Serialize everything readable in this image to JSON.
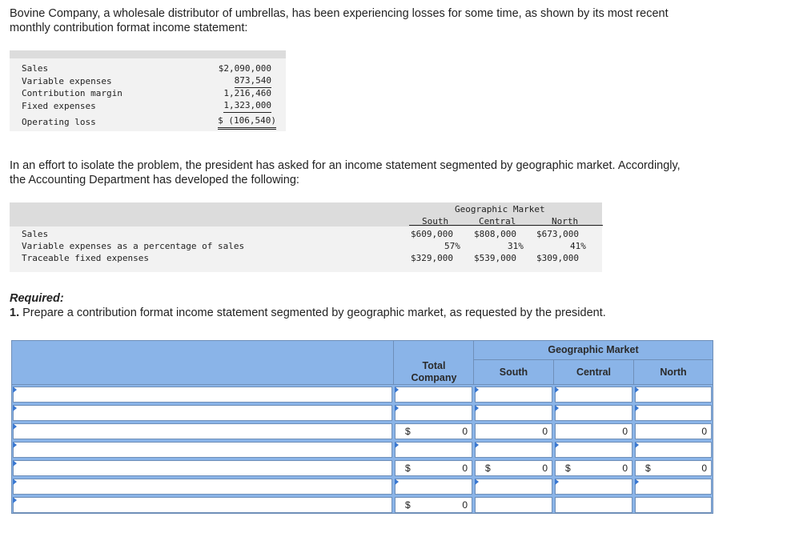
{
  "intro": {
    "line1": "Bovine Company, a wholesale distributor of umbrellas, has been experiencing losses for some time, as shown by its most recent",
    "line2": "monthly contribution format income statement:"
  },
  "income_statement": [
    {
      "label": "Sales",
      "value": "$2,090,000"
    },
    {
      "label": "Variable expenses",
      "value": "873,540"
    },
    {
      "label": "Contribution margin",
      "value": "1,216,460"
    },
    {
      "label": "Fixed expenses",
      "value": "1,323,000"
    },
    {
      "label": "Operating loss",
      "value": "$ (106,540)"
    }
  ],
  "effort": {
    "line1": "In an effort to isolate the problem, the president has asked for an income statement segmented by geographic market. Accordingly,",
    "line2": "the Accounting Department has developed the following:"
  },
  "segment_table": {
    "group_title": "Geographic Market",
    "columns": [
      "South",
      "Central",
      "North"
    ],
    "rows": [
      {
        "label": "Sales",
        "values": [
          "$609,000",
          "$808,000",
          "$673,000"
        ]
      },
      {
        "label": "Variable expenses as a percentage of sales",
        "values": [
          "57%",
          "31%",
          "41%"
        ]
      },
      {
        "label": "Traceable fixed expenses",
        "values": [
          "$329,000",
          "$539,000",
          "$309,000"
        ]
      }
    ]
  },
  "required": {
    "heading": "Required:",
    "number": "1.",
    "text": "Prepare a contribution format income statement segmented by geographic market, as requested by the president."
  },
  "answer_grid": {
    "group_header": "Geographic Market",
    "headers": [
      "Total Company",
      "South",
      "Central",
      "North"
    ],
    "rows": [
      {
        "dollar": [
          "",
          "",
          "",
          ""
        ],
        "values": [
          "",
          "",
          "",
          ""
        ]
      },
      {
        "dollar": [
          "",
          "",
          "",
          ""
        ],
        "values": [
          "",
          "",
          "",
          ""
        ]
      },
      {
        "dollar": [
          "$",
          "",
          "",
          ""
        ],
        "values": [
          "0",
          "0",
          "0",
          "0"
        ]
      },
      {
        "dollar": [
          "",
          "",
          "",
          ""
        ],
        "values": [
          "",
          "",
          "",
          ""
        ]
      },
      {
        "dollar": [
          "$",
          "$",
          "$",
          "$"
        ],
        "values": [
          "0",
          "0",
          "0",
          "0"
        ]
      },
      {
        "dollar": [
          "",
          "",
          "",
          ""
        ],
        "values": [
          "",
          "",
          "",
          ""
        ]
      },
      {
        "dollar": [
          "$",
          "",
          "",
          ""
        ],
        "values": [
          "0",
          "",
          "",
          ""
        ]
      }
    ]
  }
}
